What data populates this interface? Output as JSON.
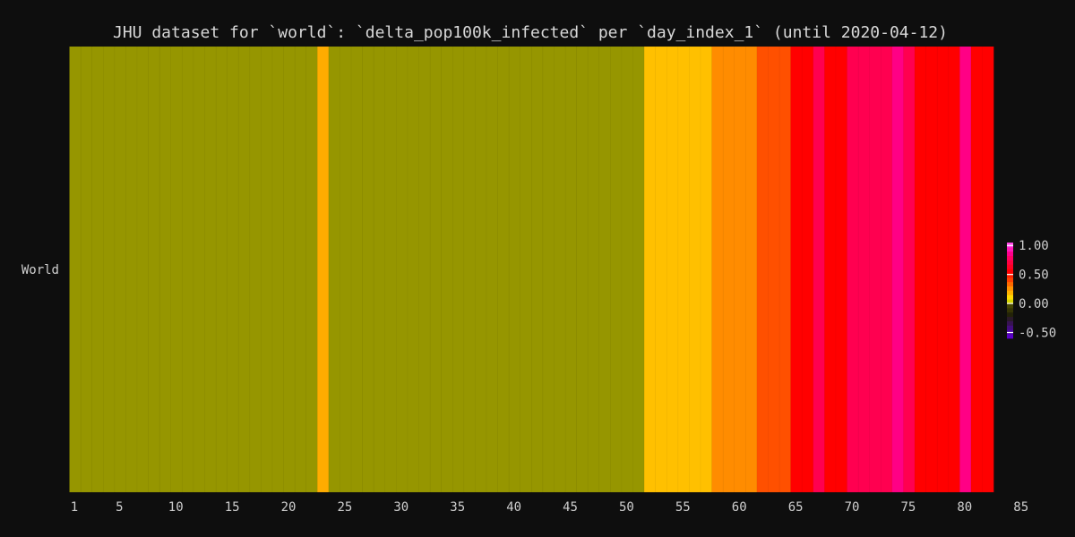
{
  "chart_data": {
    "type": "heatmap",
    "title": "JHU dataset for `world`: `delta_pop100k_infected` per `day_index_1` (until 2020-04-12)",
    "xlabel": "",
    "ylabel": "",
    "rows": [
      "World"
    ],
    "x_range": [
      1,
      82
    ],
    "x_ticks": [
      1,
      5,
      10,
      15,
      20,
      25,
      30,
      35,
      40,
      45,
      50,
      55,
      60,
      65,
      70,
      75,
      80,
      85
    ],
    "values": [
      0.02,
      0.02,
      0.02,
      0.02,
      0.02,
      0.02,
      0.02,
      0.02,
      0.02,
      0.02,
      0.02,
      0.02,
      0.02,
      0.02,
      0.02,
      0.02,
      0.02,
      0.02,
      0.02,
      0.02,
      0.02,
      0.02,
      0.2,
      0.02,
      0.02,
      0.02,
      0.02,
      0.02,
      0.02,
      0.02,
      0.02,
      0.02,
      0.02,
      0.02,
      0.02,
      0.02,
      0.02,
      0.02,
      0.02,
      0.02,
      0.02,
      0.02,
      0.02,
      0.02,
      0.02,
      0.02,
      0.02,
      0.02,
      0.02,
      0.02,
      0.02,
      0.15,
      0.15,
      0.15,
      0.15,
      0.15,
      0.15,
      0.28,
      0.28,
      0.28,
      0.28,
      0.38,
      0.38,
      0.38,
      0.55,
      0.55,
      0.75,
      0.55,
      0.55,
      0.75,
      0.75,
      0.75,
      0.75,
      0.85,
      0.75,
      0.55,
      0.55,
      0.55,
      0.55,
      0.85,
      0.55,
      0.55
    ],
    "colorbar": {
      "min": -0.6,
      "max": 1.05,
      "ticks": [
        -0.5,
        0.0,
        0.5,
        1.0
      ],
      "tick_labels": [
        "-0.50",
        "0.00",
        "0.50",
        "1.00"
      ],
      "stops": [
        {
          "v": -0.55,
          "c": "#5a00c8"
        },
        {
          "v": -0.2,
          "c": "#202008"
        },
        {
          "v": 0.0,
          "c": "#505000"
        },
        {
          "v": 0.05,
          "c": "#ffff00"
        },
        {
          "v": 0.15,
          "c": "#ffc000"
        },
        {
          "v": 0.28,
          "c": "#ff8c00"
        },
        {
          "v": 0.38,
          "c": "#ff5000"
        },
        {
          "v": 0.55,
          "c": "#ff0000"
        },
        {
          "v": 0.75,
          "c": "#ff0050"
        },
        {
          "v": 0.9,
          "c": "#ff00a0"
        },
        {
          "v": 1.05,
          "c": "#ff60ff"
        }
      ]
    },
    "grid": false,
    "legend": "colorbar right"
  }
}
